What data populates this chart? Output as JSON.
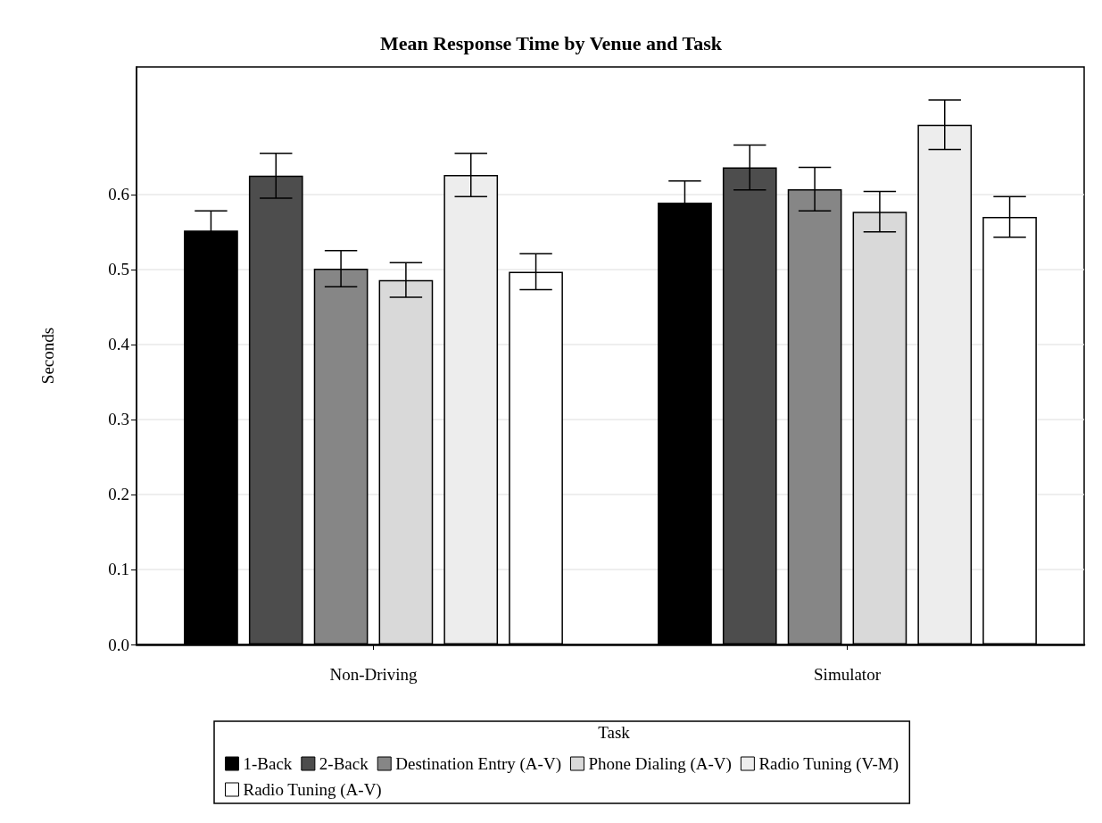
{
  "chart_data": {
    "type": "bar",
    "title": "Mean Response Time by Venue and Task",
    "ylabel": "Seconds",
    "legend_title": "Task",
    "categories": [
      "Non-Driving",
      "Simulator"
    ],
    "series": [
      {
        "name": "1-Back",
        "color": "#000000",
        "values": [
          0.552,
          0.589
        ],
        "errors": [
          0.026,
          0.029
        ]
      },
      {
        "name": "2-Back",
        "color": "#4d4d4d",
        "values": [
          0.625,
          0.636
        ],
        "errors": [
          0.03,
          0.03
        ]
      },
      {
        "name": "Destination Entry (A-V)",
        "color": "#868686",
        "values": [
          0.501,
          0.607
        ],
        "errors": [
          0.024,
          0.029
        ]
      },
      {
        "name": "Phone Dialing (A-V)",
        "color": "#d9d9d9",
        "values": [
          0.486,
          0.577
        ],
        "errors": [
          0.023,
          0.027
        ]
      },
      {
        "name": "Radio Tuning (V-M)",
        "color": "#ededed",
        "values": [
          0.626,
          0.693
        ],
        "errors": [
          0.029,
          0.033
        ]
      },
      {
        "name": "Radio Tuning (A-V)",
        "color": "#ffffff",
        "values": [
          0.497,
          0.57
        ],
        "errors": [
          0.024,
          0.027
        ]
      }
    ],
    "ylim": [
      0,
      0.77
    ],
    "yticks": [
      {
        "value": 0,
        "label": "0.0"
      },
      0.1,
      0.2,
      0.3,
      0.4,
      0.5,
      0.6
    ],
    "grid": "y",
    "legend": "bottom"
  }
}
